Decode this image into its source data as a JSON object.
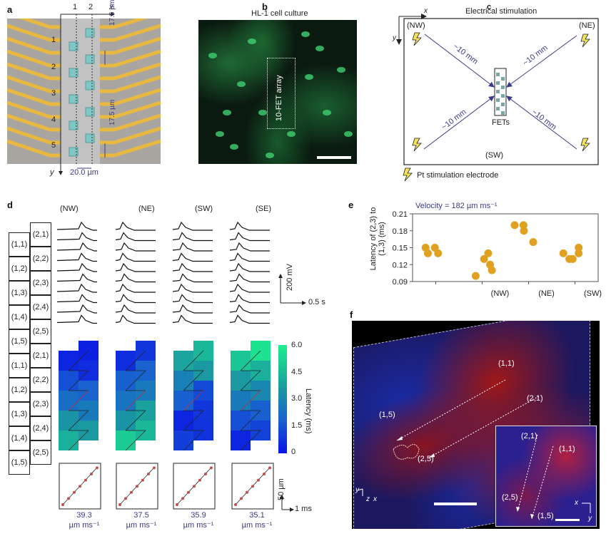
{
  "panels": {
    "a": {
      "label": "a",
      "col_labels": [
        "1",
        "2"
      ],
      "row_labels": [
        "1",
        "2",
        "3",
        "4",
        "5"
      ],
      "x_axis": "x",
      "y_axis": "y",
      "pitch_y_top": "17.5 µm",
      "pitch_y_mid": "17.5 µm",
      "pitch_x": "20.0 µm"
    },
    "b": {
      "label": "b",
      "title": "HL-1 cell culture",
      "box_label": "10-FET array"
    },
    "c": {
      "label": "c",
      "title": "Electrical stimulation",
      "x_axis": "x",
      "y_axis": "y",
      "corners": [
        "(NW)",
        "(NE)",
        "(SW)"
      ],
      "distance": "~10 mm",
      "center_label": "FETs",
      "legend": "Pt stimulation electrode"
    },
    "d": {
      "label": "d",
      "stim_labels": [
        "(NW)",
        "(NE)",
        "(SW)",
        "(SE)"
      ],
      "grid_col1": [
        "(1,1)",
        "(1,2)",
        "(1,3)",
        "(1,4)",
        "(1,5)"
      ],
      "grid_col2": [
        "(2,1)",
        "(2,2)",
        "(2,3)",
        "(2,4)",
        "(2,5)"
      ],
      "scale_v": "200 mV",
      "scale_t": "0.5 s",
      "colorbar": {
        "label": "Latency (ms)",
        "ticks": [
          "6.0",
          "4.5",
          "3.0",
          "1.5",
          "0"
        ],
        "min": 0,
        "max": 6,
        "color_low": "#0a14e6",
        "color_high": "#1ef08c"
      },
      "heatmaps": [
        {
          "stim": "NW",
          "latency_col1": [
            0.4,
            1.4,
            2.2,
            3.4,
            4.2
          ],
          "latency_col2": [
            0.3,
            0.6,
            1.9,
            2.6,
            3.6
          ]
        },
        {
          "stim": "NE",
          "latency_col1": [
            0.6,
            1.8,
            2.4,
            3.4,
            5.0
          ],
          "latency_col2": [
            0.8,
            1.9,
            2.6,
            3.8,
            4.4
          ]
        },
        {
          "stim": "SW",
          "latency_col1": [
            3.9,
            2.8,
            1.8,
            0.4,
            1.0
          ],
          "latency_col2": [
            4.4,
            3.6,
            1.3,
            0.8,
            0.7
          ]
        },
        {
          "stim": "SE",
          "latency_col1": [
            4.8,
            3.6,
            2.6,
            1.4,
            0.4
          ],
          "latency_col2": [
            5.6,
            4.2,
            3.0,
            1.8,
            1.1
          ]
        }
      ],
      "velocity_plots": [
        {
          "value": "39.3",
          "unit": "µm ms⁻¹"
        },
        {
          "value": "37.5",
          "unit": "µm ms⁻¹"
        },
        {
          "value": "35.9",
          "unit": "µm ms⁻¹"
        },
        {
          "value": "35.1",
          "unit": "µm ms⁻¹"
        }
      ],
      "vel_scale_y": "50 µm",
      "vel_scale_x": "1 ms"
    },
    "e": {
      "label": "e"
    },
    "f": {
      "label": "f",
      "main_labels": [
        "(1,1)",
        "(2,1)",
        "(1,5)",
        "(2,5)"
      ],
      "inset_labels": [
        "(2,1)",
        "(1,1)",
        "(2,5)",
        "(1,5)"
      ],
      "axes_main": [
        "y",
        "z",
        "x"
      ],
      "axes_inset": [
        "x",
        "y"
      ]
    }
  },
  "chart_data": {
    "type": "scatter",
    "title": "Velocity = 182 µm ms⁻¹",
    "xlabel": "",
    "ylabel": "Latency of (2,3) to (1,3) (ms)",
    "ylim": [
      0.09,
      0.21
    ],
    "yticks": [
      "0.21",
      "0.18",
      "0.15",
      "0.12",
      "0.09"
    ],
    "categories": [
      "",
      "(NW)",
      "(NE)",
      "(SW)"
    ],
    "grid": false,
    "series": [
      {
        "name": "group1",
        "x": [
          0.78,
          0.83,
          0.98,
          1.05
        ],
        "y": [
          0.15,
          0.14,
          0.15,
          0.14
        ]
      },
      {
        "name": "group2",
        "x": [
          1.86,
          2.04,
          2.13,
          2.17,
          2.21
        ],
        "y": [
          0.1,
          0.13,
          0.14,
          0.12,
          0.11
        ]
      },
      {
        "name": "group3",
        "x": [
          2.7,
          2.89,
          2.9,
          3.1
        ],
        "y": [
          0.19,
          0.19,
          0.18,
          0.16
        ]
      },
      {
        "name": "group4",
        "x": [
          3.75,
          3.88,
          3.95,
          4.08,
          4.08
        ],
        "y": [
          0.14,
          0.13,
          0.13,
          0.15,
          0.14
        ]
      }
    ],
    "marker_color": "#e0a020"
  }
}
